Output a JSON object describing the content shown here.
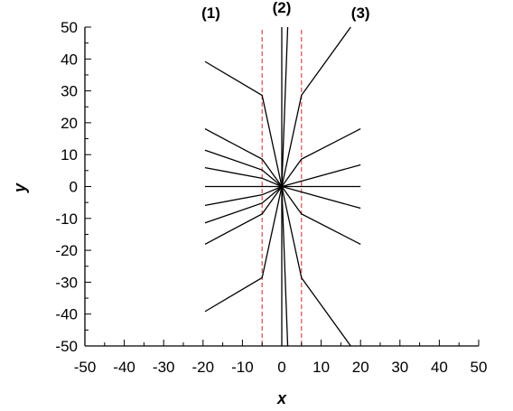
{
  "chart_data": {
    "type": "line",
    "title": "",
    "xlabel": "x",
    "ylabel": "y",
    "xlim": [
      -50,
      50
    ],
    "ylim": [
      -50,
      50
    ],
    "x_ticks": [
      -50,
      -40,
      -30,
      -20,
      -10,
      0,
      10,
      20,
      30,
      40,
      50
    ],
    "y_ticks": [
      -50,
      -40,
      -30,
      -20,
      -10,
      0,
      10,
      20,
      30,
      40,
      50
    ],
    "x_tick_labels": [
      "-50",
      "-40",
      "-30",
      "-20",
      "-10",
      "0",
      "10",
      "20",
      "30",
      "40",
      "50"
    ],
    "y_tick_labels": [
      "-50",
      "-40",
      "-30",
      "-20",
      "-10",
      "0",
      "10",
      "20",
      "30",
      "40",
      "50"
    ],
    "grid": false,
    "region_labels": [
      {
        "text": "(1)",
        "x": -18
      },
      {
        "text": "(2)",
        "x": 0
      },
      {
        "text": "(3)",
        "x": 20
      }
    ],
    "boundaries": {
      "x": [
        -5,
        5
      ],
      "color": "#d62728",
      "style": "dashed"
    },
    "rays": [
      {
        "points": [
          [
            0,
            0
          ],
          [
            -5,
            28.6
          ],
          [
            -19.5,
            39.2
          ]
        ]
      },
      {
        "points": [
          [
            0,
            0
          ],
          [
            -5,
            8.6
          ],
          [
            -19.5,
            18.1
          ]
        ]
      },
      {
        "points": [
          [
            0,
            0
          ],
          [
            -5,
            5.2
          ],
          [
            -19.5,
            11.4
          ]
        ]
      },
      {
        "points": [
          [
            0,
            0
          ],
          [
            -5,
            2.6
          ],
          [
            -19.5,
            5.9
          ]
        ]
      },
      {
        "points": [
          [
            0,
            0
          ],
          [
            -19.5,
            0
          ]
        ]
      },
      {
        "points": [
          [
            0,
            0
          ],
          [
            -5,
            -2.6
          ],
          [
            -19.5,
            -5.9
          ]
        ]
      },
      {
        "points": [
          [
            0,
            0
          ],
          [
            -5,
            -5.2
          ],
          [
            -19.5,
            -11.4
          ]
        ]
      },
      {
        "points": [
          [
            0,
            0
          ],
          [
            -5,
            -8.6
          ],
          [
            -19.5,
            -18.1
          ]
        ]
      },
      {
        "points": [
          [
            0,
            0
          ],
          [
            -5,
            -28.6
          ],
          [
            -19.5,
            -39.2
          ]
        ]
      },
      {
        "points": [
          [
            0,
            0
          ],
          [
            5,
            28.6
          ],
          [
            17.5,
            50
          ]
        ]
      },
      {
        "points": [
          [
            0,
            0
          ],
          [
            5,
            8.6
          ],
          [
            20,
            18.1
          ]
        ]
      },
      {
        "points": [
          [
            0,
            0
          ],
          [
            20,
            6.8
          ]
        ]
      },
      {
        "points": [
          [
            0,
            0
          ],
          [
            20,
            0
          ]
        ]
      },
      {
        "points": [
          [
            0,
            0
          ],
          [
            20,
            -6.8
          ]
        ]
      },
      {
        "points": [
          [
            0,
            0
          ],
          [
            5,
            -8.6
          ],
          [
            20,
            -18.1
          ]
        ]
      },
      {
        "points": [
          [
            0,
            0
          ],
          [
            5,
            -28.6
          ],
          [
            17.5,
            -50
          ]
        ]
      },
      {
        "points": [
          [
            0,
            -50
          ],
          [
            0,
            50
          ]
        ]
      },
      {
        "points": [
          [
            0,
            0
          ],
          [
            1.5,
            50
          ]
        ]
      },
      {
        "points": [
          [
            0,
            0
          ],
          [
            1.5,
            -50
          ]
        ]
      }
    ]
  }
}
